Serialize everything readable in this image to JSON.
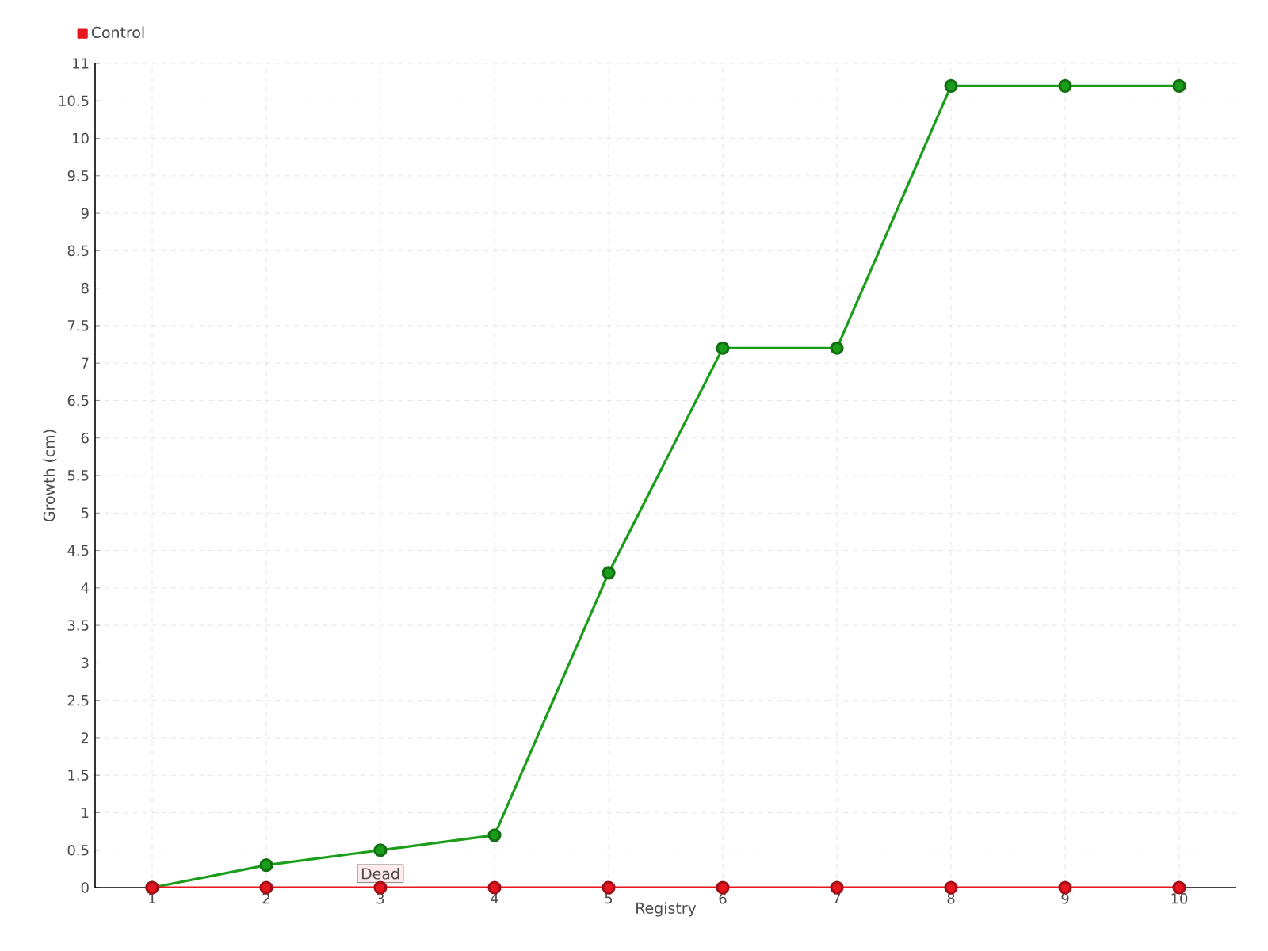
{
  "chart_data": {
    "type": "line",
    "xlabel": "Registry",
    "ylabel": "Growth (cm)",
    "categories": [
      "1",
      "2",
      "3",
      "4",
      "5",
      "6",
      "7",
      "8",
      "9",
      "10"
    ],
    "series": [
      {
        "color": "#1a9e1a",
        "values": [
          0,
          0.3,
          0.5,
          0.7,
          4.2,
          7.2,
          7.2,
          10.7,
          10.7,
          10.7
        ]
      },
      {
        "name": "Control",
        "color": "#e8141e",
        "values": [
          0,
          0,
          0,
          0,
          0,
          0,
          0,
          0,
          0,
          0
        ]
      }
    ],
    "ylim": [
      0,
      11
    ],
    "yticks": [
      0,
      0.5,
      1,
      1.5,
      2,
      2.5,
      3,
      3.5,
      4,
      4.5,
      5,
      5.5,
      6,
      6.5,
      7,
      7.5,
      8,
      8.5,
      9,
      9.5,
      10,
      10.5,
      11
    ],
    "annotations": [
      {
        "text": "Dead",
        "x": "3",
        "y": 0
      }
    ],
    "grid": true,
    "legend": "top left",
    "marker": "circle",
    "line_style": "solid"
  }
}
